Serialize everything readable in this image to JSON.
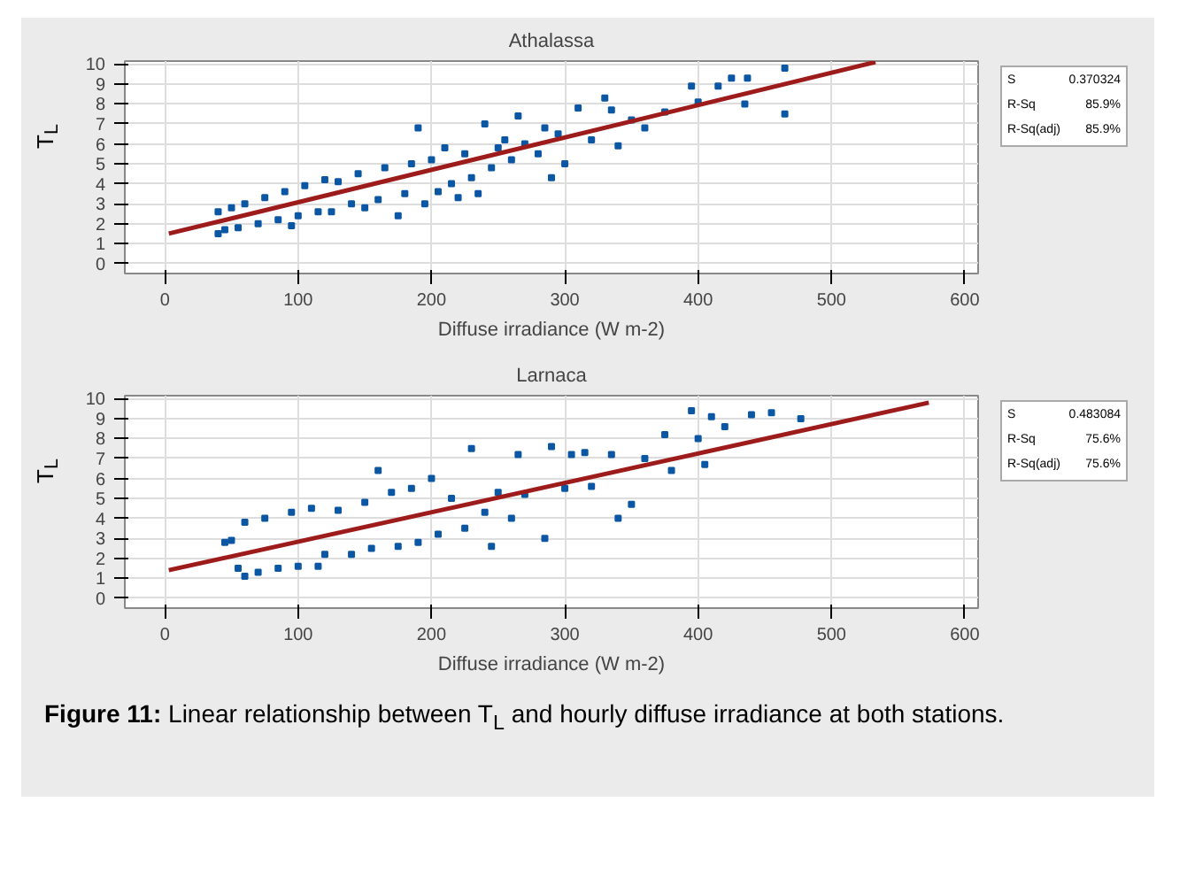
{
  "chart_data": [
    {
      "type": "scatter",
      "title": "Athalassa",
      "xlabel": "Diffuse irradiance (W m-2)",
      "ylabel": "T$_{L}$",
      "xlim": [
        -30,
        610
      ],
      "ylim": [
        -0.5,
        10.15
      ],
      "xticks": [
        0,
        100,
        200,
        300,
        400,
        500,
        600
      ],
      "yticks": [
        0,
        1,
        2,
        3,
        4,
        5,
        6,
        7,
        8,
        9,
        10
      ],
      "grid": true,
      "marker": "square",
      "x": [
        40,
        40,
        45,
        50,
        55,
        60,
        70,
        75,
        85,
        90,
        95,
        100,
        105,
        115,
        120,
        125,
        130,
        140,
        145,
        150,
        160,
        165,
        175,
        180,
        185,
        190,
        195,
        200,
        205,
        210,
        215,
        220,
        225,
        230,
        235,
        240,
        245,
        250,
        255,
        260,
        265,
        270,
        280,
        285,
        290,
        295,
        300,
        310,
        320,
        330,
        335,
        340,
        350,
        360,
        375,
        395,
        400,
        415,
        425,
        435,
        437,
        465,
        465
      ],
      "series": [
        {
          "color": "#0b57a4",
          "values": [
            1.5,
            2.6,
            1.7,
            2.8,
            1.8,
            3.0,
            2.0,
            3.3,
            2.2,
            3.6,
            1.9,
            2.4,
            3.9,
            2.6,
            4.2,
            2.6,
            4.1,
            3.0,
            4.5,
            2.8,
            3.2,
            4.8,
            2.4,
            3.5,
            5.0,
            6.8,
            3.0,
            5.2,
            3.6,
            5.8,
            4.0,
            3.3,
            5.5,
            4.3,
            3.5,
            7.0,
            4.8,
            5.8,
            6.2,
            5.2,
            7.4,
            6.0,
            5.5,
            6.8,
            4.3,
            6.5,
            5.0,
            7.8,
            6.2,
            8.3,
            7.7,
            5.9,
            7.2,
            6.8,
            7.6,
            8.9,
            8.1,
            8.9,
            9.3,
            8.0,
            9.3,
            9.8,
            7.5
          ]
        },
        {
          "type": "line",
          "marker": "none",
          "color": "#9e1b1b",
          "x": [
            3,
            533
          ],
          "values": [
            1.5,
            10.1
          ]
        }
      ],
      "annotations": [
        "S 0.370324",
        "R-Sq 85.9%",
        "R-Sq(adj) 85.9%"
      ]
    },
    {
      "type": "scatter",
      "title": "Larnaca",
      "xlabel": "Diffuse irradiance (W m-2)",
      "ylabel": "T$_{L}$",
      "xlim": [
        -30,
        610
      ],
      "ylim": [
        -0.5,
        10.15
      ],
      "xticks": [
        0,
        100,
        200,
        300,
        400,
        500,
        600
      ],
      "yticks": [
        0,
        1,
        2,
        3,
        4,
        5,
        6,
        7,
        8,
        9,
        10
      ],
      "grid": true,
      "marker": "square",
      "x": [
        45,
        50,
        55,
        60,
        60,
        70,
        75,
        85,
        95,
        100,
        110,
        115,
        120,
        130,
        140,
        150,
        155,
        160,
        170,
        175,
        185,
        190,
        200,
        205,
        215,
        225,
        230,
        240,
        245,
        250,
        260,
        265,
        270,
        285,
        290,
        300,
        305,
        315,
        320,
        335,
        340,
        350,
        360,
        375,
        380,
        395,
        400,
        405,
        410,
        420,
        440,
        455,
        477
      ],
      "series": [
        {
          "color": "#0b57a4",
          "values": [
            2.8,
            2.9,
            1.5,
            1.1,
            3.8,
            1.3,
            4.0,
            1.5,
            4.3,
            1.6,
            4.5,
            1.6,
            2.2,
            4.4,
            2.2,
            4.8,
            2.5,
            6.4,
            5.3,
            2.6,
            5.5,
            2.8,
            6.0,
            3.2,
            5.0,
            3.5,
            7.5,
            4.3,
            2.6,
            5.3,
            4.0,
            7.2,
            5.2,
            3.0,
            7.6,
            5.5,
            7.2,
            7.3,
            5.6,
            7.2,
            4.0,
            4.7,
            7.0,
            8.2,
            6.4,
            9.4,
            8.0,
            6.7,
            9.1,
            8.6,
            9.2,
            9.3,
            9.0
          ]
        },
        {
          "type": "line",
          "marker": "none",
          "color": "#9e1b1b",
          "x": [
            3,
            573
          ],
          "values": [
            1.4,
            9.8
          ]
        }
      ],
      "annotations": [
        "S 0.483084",
        "R-Sq 75.6%",
        "R-Sq(adj) 75.6%",
        "Figure 11: Linear relationship between T$_{L}$ and hourly diffuse irradiance at both stations."
      ]
    }
  ]
}
